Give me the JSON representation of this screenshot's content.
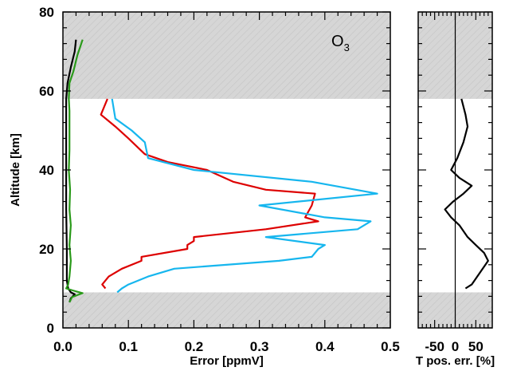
{
  "chart_data": [
    {
      "type": "line",
      "annotation": "O",
      "annotation_subscript": "3",
      "xlabel": "Error [ppmV]",
      "ylabel": "Altitude [km]",
      "xlim": [
        0.0,
        0.5
      ],
      "ylim": [
        0,
        80
      ],
      "x_ticks": [
        "0.0",
        "0.1",
        "0.2",
        "0.3",
        "0.4",
        "0.5"
      ],
      "y_ticks": [
        "0",
        "20",
        "40",
        "60",
        "80"
      ],
      "shaded_bands": [
        {
          "from": 0,
          "to": 9
        },
        {
          "from": 58,
          "to": 80
        }
      ],
      "colors": {
        "red": "#dd0000",
        "cyan": "#16b6ee",
        "black": "#000000",
        "green": "#2a9a1a",
        "shade": "#d6d6d6"
      },
      "series": [
        {
          "color": "red",
          "points": [
            [
              0.065,
              10
            ],
            [
              0.06,
              11
            ],
            [
              0.07,
              13
            ],
            [
              0.09,
              15
            ],
            [
              0.12,
              17
            ],
            [
              0.12,
              18
            ],
            [
              0.19,
              20
            ],
            [
              0.19,
              21
            ],
            [
              0.2,
              22
            ],
            [
              0.2,
              23
            ],
            [
              0.31,
              25
            ],
            [
              0.39,
              27
            ],
            [
              0.37,
              28
            ],
            [
              0.38,
              31
            ],
            [
              0.385,
              34
            ],
            [
              0.31,
              35
            ],
            [
              0.26,
              37
            ],
            [
              0.22,
              40
            ],
            [
              0.16,
              42
            ],
            [
              0.125,
              44
            ],
            [
              0.1,
              48
            ],
            [
              0.08,
              51
            ],
            [
              0.058,
              54
            ],
            [
              0.068,
              58
            ]
          ]
        },
        {
          "color": "cyan",
          "points": [
            [
              0.083,
              9
            ],
            [
              0.09,
              10
            ],
            [
              0.1,
              11
            ],
            [
              0.13,
              13
            ],
            [
              0.17,
              15
            ],
            [
              0.33,
              17
            ],
            [
              0.38,
              18
            ],
            [
              0.39,
              20
            ],
            [
              0.4,
              21
            ],
            [
              0.31,
              23
            ],
            [
              0.45,
              25
            ],
            [
              0.47,
              27
            ],
            [
              0.4,
              28
            ],
            [
              0.3,
              31
            ],
            [
              0.48,
              34
            ],
            [
              0.38,
              37
            ],
            [
              0.2,
              40
            ],
            [
              0.13,
              43
            ],
            [
              0.125,
              47
            ],
            [
              0.105,
              50
            ],
            [
              0.08,
              53
            ],
            [
              0.075,
              58
            ]
          ]
        },
        {
          "color": "black",
          "points": [
            [
              0.01,
              6.5
            ],
            [
              0.012,
              7.5
            ],
            [
              0.018,
              8.5
            ],
            [
              0.012,
              9
            ],
            [
              0.008,
              10
            ],
            [
              0.006,
              12
            ],
            [
              0.006,
              20
            ],
            [
              0.005,
              30
            ],
            [
              0.005,
              40
            ],
            [
              0.005,
              50
            ],
            [
              0.005,
              58
            ],
            [
              0.007,
              62
            ],
            [
              0.012,
              66
            ],
            [
              0.018,
              70
            ],
            [
              0.02,
              73
            ]
          ]
        },
        {
          "color": "green",
          "points": [
            [
              0.01,
              6.5
            ],
            [
              0.014,
              7.8
            ],
            [
              0.03,
              8.8
            ],
            [
              0.015,
              9.5
            ],
            [
              0.005,
              10
            ],
            [
              0.008,
              11
            ],
            [
              0.01,
              13
            ],
            [
              0.012,
              17
            ],
            [
              0.01,
              21
            ],
            [
              0.012,
              26
            ],
            [
              0.01,
              30
            ],
            [
              0.011,
              35
            ],
            [
              0.009,
              40
            ],
            [
              0.01,
              45
            ],
            [
              0.01,
              50
            ],
            [
              0.01,
              55
            ],
            [
              0.009,
              58
            ],
            [
              0.01,
              62
            ],
            [
              0.016,
              65
            ],
            [
              0.022,
              69
            ],
            [
              0.03,
              73
            ]
          ]
        }
      ]
    },
    {
      "type": "line",
      "xlabel": "T pos. err. [%]",
      "xlim": [
        -90,
        90
      ],
      "ylim": [
        0,
        80
      ],
      "x_ticks": [
        "-50",
        "0",
        "50"
      ],
      "zero_line": true,
      "shaded_bands": [
        {
          "from": 0,
          "to": 9
        },
        {
          "from": 58,
          "to": 80
        }
      ],
      "series": [
        {
          "color": "black",
          "points": [
            [
              25,
              10
            ],
            [
              40,
              11
            ],
            [
              60,
              14
            ],
            [
              80,
              17
            ],
            [
              70,
              19
            ],
            [
              50,
              21
            ],
            [
              30,
              23
            ],
            [
              10,
              26
            ],
            [
              -10,
              28
            ],
            [
              -25,
              30
            ],
            [
              -5,
              32
            ],
            [
              20,
              34
            ],
            [
              40,
              36
            ],
            [
              10,
              38
            ],
            [
              -10,
              40
            ],
            [
              5,
              43
            ],
            [
              20,
              47
            ],
            [
              30,
              51
            ],
            [
              25,
              54
            ],
            [
              15,
              58
            ]
          ]
        }
      ]
    }
  ]
}
